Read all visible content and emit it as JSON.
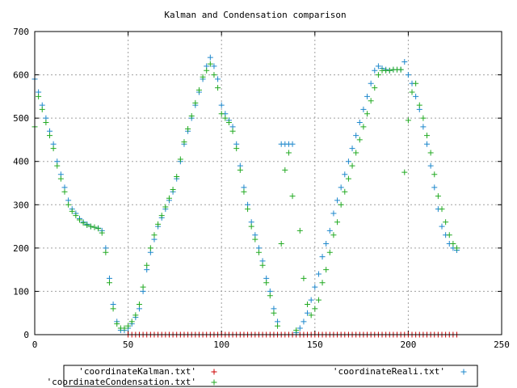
{
  "chart_data": {
    "type": "scatter",
    "title": "Kalman and Condensation comparison",
    "xlabel": "",
    "ylabel": "",
    "xlim": [
      0,
      250
    ],
    "ylim": [
      0,
      700
    ],
    "xticks": [
      "0",
      "50",
      "100",
      "150",
      "200",
      "250"
    ],
    "yticks": [
      "0",
      "100",
      "200",
      "300",
      "400",
      "500",
      "600",
      "700"
    ],
    "grid": true,
    "legend_position": "bottom",
    "marker": "+",
    "series": [
      {
        "name": "'coordinateKalman.txt'",
        "color": "#cc0000",
        "x": [
          50,
          52,
          54,
          56,
          58,
          60,
          62,
          64,
          66,
          68,
          70,
          72,
          74,
          76,
          78,
          80,
          82,
          84,
          86,
          88,
          90,
          92,
          94,
          96,
          98,
          100,
          102,
          104,
          106,
          108,
          110,
          112,
          114,
          116,
          118,
          120,
          122,
          124,
          126,
          128,
          130,
          132,
          134,
          136,
          138,
          140,
          142,
          144,
          146,
          148,
          150,
          152,
          154,
          156,
          158,
          160,
          162,
          164,
          166,
          168,
          170,
          172,
          174,
          176,
          178,
          180,
          182,
          184,
          186,
          188,
          190,
          192,
          194,
          196,
          198,
          200,
          202,
          204,
          206,
          208,
          210,
          212,
          214,
          216,
          218,
          220,
          222,
          224,
          226
        ],
        "y": [
          0,
          0,
          0,
          0,
          0,
          0,
          0,
          0,
          0,
          0,
          0,
          0,
          0,
          0,
          0,
          0,
          0,
          0,
          0,
          0,
          0,
          0,
          0,
          0,
          0,
          0,
          0,
          0,
          0,
          0,
          0,
          0,
          0,
          0,
          0,
          0,
          0,
          0,
          0,
          0,
          0,
          0,
          0,
          0,
          0,
          0,
          0,
          0,
          0,
          0,
          0,
          0,
          0,
          0,
          0,
          0,
          0,
          0,
          0,
          0,
          0,
          0,
          0,
          0,
          0,
          0,
          0,
          0,
          0,
          0,
          0,
          0,
          0,
          0,
          0,
          0,
          0,
          0,
          0,
          0,
          0,
          0,
          0,
          0,
          0,
          0,
          0,
          0,
          0
        ]
      },
      {
        "name": "'coordinateReali.txt'",
        "color": "#1e88cc",
        "x": [
          0,
          2,
          4,
          6,
          8,
          10,
          12,
          14,
          16,
          18,
          20,
          22,
          24,
          26,
          28,
          30,
          32,
          34,
          36,
          38,
          40,
          42,
          44,
          46,
          48,
          50,
          52,
          54,
          56,
          58,
          60,
          62,
          64,
          66,
          68,
          70,
          72,
          74,
          76,
          78,
          80,
          82,
          84,
          86,
          88,
          90,
          92,
          94,
          96,
          98,
          100,
          102,
          104,
          106,
          108,
          110,
          112,
          114,
          116,
          118,
          120,
          122,
          124,
          126,
          128,
          130,
          132,
          134,
          136,
          138,
          140,
          142,
          144,
          146,
          148,
          150,
          152,
          154,
          156,
          158,
          160,
          162,
          164,
          166,
          168,
          170,
          172,
          174,
          176,
          178,
          180,
          182,
          184,
          186,
          188,
          190,
          192,
          194,
          196,
          198,
          200,
          202,
          204,
          206,
          208,
          210,
          212,
          214,
          216,
          218,
          220,
          222,
          224,
          226
        ],
        "y": [
          590,
          560,
          530,
          500,
          470,
          440,
          400,
          370,
          340,
          310,
          290,
          280,
          268,
          260,
          255,
          250,
          248,
          246,
          240,
          200,
          130,
          70,
          30,
          10,
          10,
          15,
          25,
          40,
          60,
          100,
          150,
          190,
          220,
          250,
          270,
          290,
          310,
          330,
          360,
          400,
          440,
          470,
          500,
          530,
          560,
          590,
          620,
          640,
          620,
          590,
          530,
          510,
          495,
          480,
          440,
          390,
          340,
          300,
          260,
          230,
          200,
          170,
          130,
          100,
          60,
          30,
          440,
          440,
          440,
          440,
          5,
          15,
          30,
          50,
          80,
          110,
          140,
          180,
          210,
          240,
          280,
          310,
          340,
          370,
          400,
          430,
          460,
          490,
          520,
          550,
          580,
          610,
          620,
          615,
          612,
          610,
          612,
          612,
          612,
          630,
          600,
          580,
          550,
          520,
          480,
          440,
          390,
          340,
          290,
          250,
          230,
          210,
          200,
          195
        ]
      },
      {
        "name": "'coordinateCondensation.txt'",
        "color": "#22aa22",
        "x": [
          0,
          2,
          4,
          6,
          8,
          10,
          12,
          14,
          16,
          18,
          20,
          22,
          24,
          26,
          28,
          30,
          32,
          34,
          36,
          38,
          40,
          42,
          44,
          46,
          48,
          50,
          52,
          54,
          56,
          58,
          60,
          62,
          64,
          66,
          68,
          70,
          72,
          74,
          76,
          78,
          80,
          82,
          84,
          86,
          88,
          90,
          92,
          94,
          96,
          98,
          100,
          102,
          104,
          106,
          108,
          110,
          112,
          114,
          116,
          118,
          120,
          122,
          124,
          126,
          128,
          130,
          132,
          134,
          136,
          138,
          140,
          142,
          144,
          146,
          148,
          150,
          152,
          154,
          156,
          158,
          160,
          162,
          164,
          166,
          168,
          170,
          172,
          174,
          176,
          178,
          180,
          182,
          184,
          186,
          188,
          190,
          192,
          194,
          196,
          198,
          200,
          202,
          204,
          206,
          208,
          210,
          212,
          214,
          216,
          218,
          220,
          222,
          224,
          226
        ],
        "y": [
          480,
          550,
          520,
          490,
          460,
          430,
          390,
          360,
          330,
          300,
          285,
          275,
          265,
          258,
          253,
          250,
          248,
          245,
          235,
          190,
          120,
          60,
          25,
          15,
          15,
          20,
          30,
          45,
          70,
          110,
          160,
          200,
          230,
          255,
          275,
          295,
          315,
          335,
          365,
          405,
          445,
          475,
          505,
          535,
          565,
          595,
          610,
          625,
          600,
          570,
          510,
          500,
          490,
          470,
          430,
          380,
          330,
          290,
          250,
          220,
          190,
          160,
          120,
          90,
          50,
          20,
          210,
          380,
          420,
          320,
          10,
          240,
          130,
          70,
          45,
          60,
          80,
          120,
          150,
          190,
          230,
          260,
          300,
          330,
          360,
          390,
          420,
          450,
          480,
          510,
          540,
          570,
          600,
          610,
          610,
          610,
          612,
          612,
          612,
          375,
          495,
          560,
          580,
          530,
          500,
          460,
          420,
          370,
          320,
          290,
          260,
          230,
          210,
          200
        ]
      }
    ]
  }
}
